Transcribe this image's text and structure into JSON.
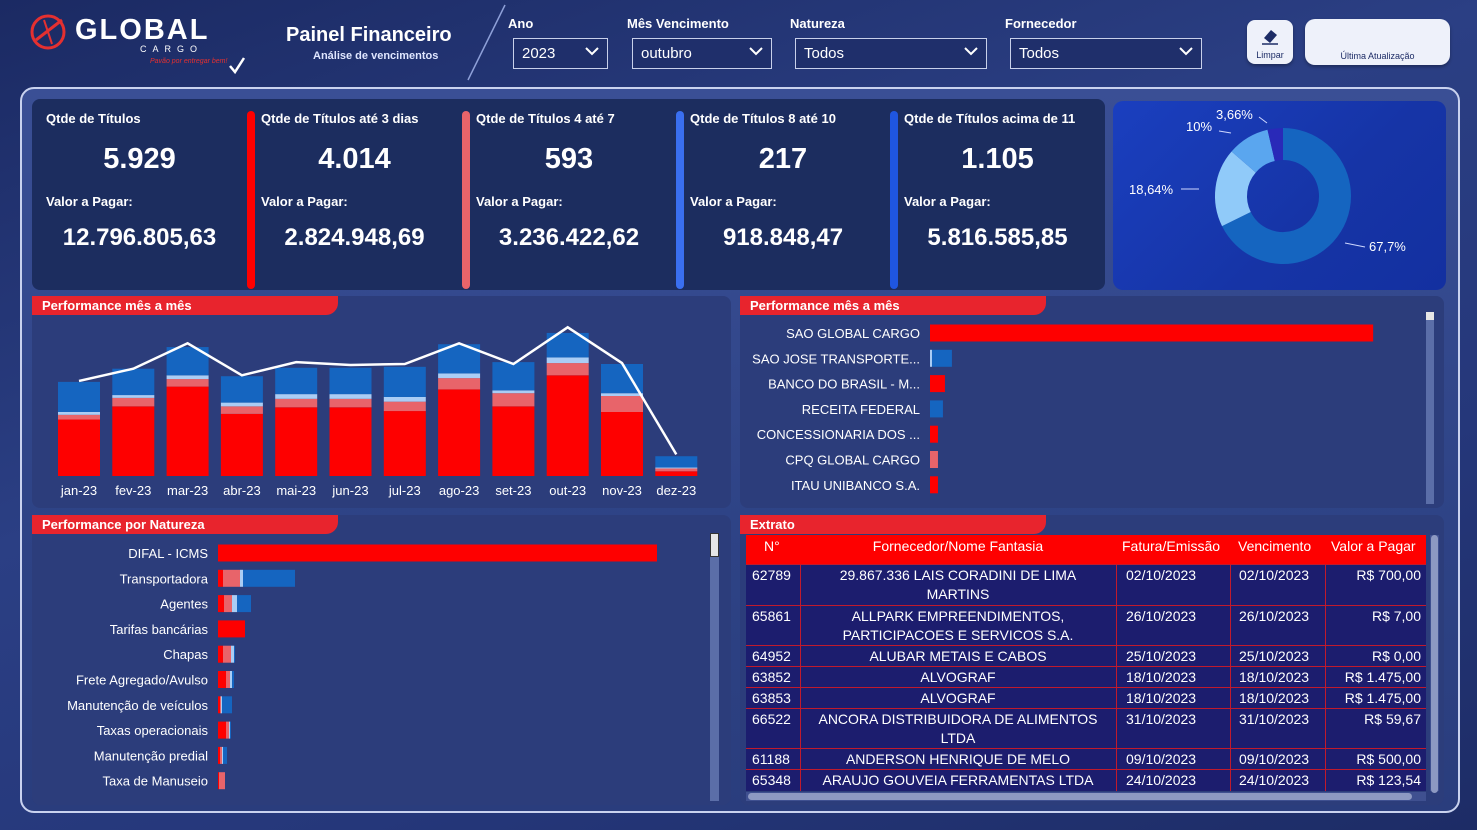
{
  "header": {
    "brand": "GLOBAL",
    "brand_sub": "CARGO",
    "slogan": "Pavão por entregar bem!",
    "title": "Painel Financeiro",
    "subtitle": "Análise de vencimentos"
  },
  "filters": {
    "ano": {
      "label": "Ano",
      "value": "2023"
    },
    "mes": {
      "label": "Mês Vencimento",
      "value": "outubro"
    },
    "natureza": {
      "label": "Natureza",
      "value": "Todos"
    },
    "fornecedor": {
      "label": "Fornecedor",
      "value": "Todos"
    }
  },
  "buttons": {
    "limpar": "Limpar",
    "update": "Última Atualização"
  },
  "kpis": [
    {
      "title": "Qtde de Títulos",
      "count": "5.929",
      "value_label": "Valor a Pagar:",
      "value": "12.796.805,63",
      "accent": ""
    },
    {
      "title": "Qtde de Títulos até 3 dias",
      "count": "4.014",
      "value_label": "Valor a Pagar:",
      "value": "2.824.948,69",
      "accent": "#fe0000"
    },
    {
      "title": "Qtde de Títulos 4 até 7",
      "count": "593",
      "value_label": "Valor a Pagar:",
      "value": "3.236.422,62",
      "accent": "#e8646a"
    },
    {
      "title": "Qtde de Títulos 8 até 10",
      "count": "217",
      "value_label": "Valor a Pagar:",
      "value": "918.848,47",
      "accent": "#3a6ff0"
    },
    {
      "title": "Qtde de Títulos acima de 11",
      "count": "1.105",
      "value_label": "Valor a Pagar:",
      "value": "5.816.585,85",
      "accent": "#1f56e0"
    }
  ],
  "donut": {
    "chart_data": {
      "type": "pie",
      "slices": [
        {
          "label": "67,7%",
          "value": 67.7,
          "color": "#1565c0"
        },
        {
          "label": "18,64%",
          "value": 18.64,
          "color": "#90caf9"
        },
        {
          "label": "10%",
          "value": 10,
          "color": "#5aa6ef"
        },
        {
          "label": "3,66%",
          "value": 3.66,
          "color": "#2929b8"
        }
      ]
    }
  },
  "monthly": {
    "title": "Performance mês a mês",
    "chart_data": {
      "type": "bar",
      "stacked": true,
      "categories": [
        "jan-23",
        "fev-23",
        "mar-23",
        "abr-23",
        "mai-23",
        "jun-23",
        "jul-23",
        "ago-23",
        "set-23",
        "out-23",
        "nov-23",
        "dez-23"
      ],
      "series": [
        {
          "name": "",
          "color": "#fe0000",
          "values": [
            60,
            74,
            95,
            66,
            73,
            73,
            69,
            92,
            74,
            107,
            68,
            5
          ]
        },
        {
          "name": "",
          "color": "#e8646a",
          "values": [
            5,
            9,
            8,
            8,
            9,
            9,
            10,
            12,
            14,
            13,
            17,
            3
          ]
        },
        {
          "name": "",
          "color": "#aacdf5",
          "values": [
            3,
            3,
            4,
            4,
            5,
            5,
            5,
            5,
            3,
            6,
            3,
            1
          ]
        },
        {
          "name": "",
          "color": "#1565c0",
          "values": [
            32,
            28,
            30,
            28,
            28,
            28,
            32,
            31,
            30,
            26,
            31,
            12
          ]
        }
      ],
      "line": [
        101,
        114,
        141,
        107,
        121,
        118,
        119,
        141,
        119,
        158,
        120,
        23
      ],
      "ylim": [
        0,
        170
      ]
    }
  },
  "suppliers": {
    "title": "Performance mês a mês",
    "chart_data": {
      "type": "bar",
      "orientation": "horizontal",
      "categories": [
        "SAO GLOBAL CARGO",
        "SAO JOSE TRANSPORTE...",
        "BANCO DO BRASIL - M...",
        "RECEITA FEDERAL",
        "CONCESSIONARIA DOS ...",
        "CPQ GLOBAL CARGO",
        "ITAU UNIBANCO S.A."
      ],
      "series": [
        {
          "name": "",
          "color": "#fe0000",
          "values": [
            445,
            0,
            15,
            0,
            8,
            0,
            8
          ]
        },
        {
          "name": "",
          "color": "#e8646a",
          "values": [
            0,
            0,
            0,
            0,
            0,
            8,
            0
          ]
        },
        {
          "name": "",
          "color": "#aacdf5",
          "values": [
            0,
            2,
            0,
            0,
            0,
            0,
            0
          ]
        },
        {
          "name": "",
          "color": "#1565c0",
          "values": [
            0,
            20,
            0,
            13,
            0,
            0,
            0
          ]
        }
      ],
      "xlim": [
        0,
        480
      ]
    }
  },
  "natureza": {
    "title": "Performance por Natureza",
    "chart_data": {
      "type": "bar",
      "orientation": "horizontal",
      "categories": [
        "DIFAL - ICMS",
        "Transportadora",
        "Agentes",
        "Tarifas bancárias",
        "Chapas",
        "Frete Agregado/Avulso",
        "Manutenção de veículos",
        "Taxas operacionais",
        "Manutenção predial",
        "Taxa de Manuseio"
      ],
      "series": [
        {
          "name": "",
          "color": "#fe0000",
          "values": [
            439,
            5,
            6,
            27,
            5,
            8,
            2,
            8,
            2,
            1
          ]
        },
        {
          "name": "",
          "color": "#e8646a",
          "values": [
            0,
            17,
            8,
            0,
            8,
            4,
            1,
            3,
            2,
            6
          ]
        },
        {
          "name": "",
          "color": "#aacdf5",
          "values": [
            0,
            3,
            5,
            0,
            3,
            2,
            1,
            1,
            1,
            0
          ]
        },
        {
          "name": "",
          "color": "#1565c0",
          "values": [
            0,
            52,
            14,
            0,
            1,
            2,
            10,
            1,
            4,
            0
          ]
        }
      ],
      "xlim": [
        0,
        480
      ]
    }
  },
  "extrato": {
    "title": "Extrato",
    "columns": [
      "N°",
      "Fornecedor/Nome Fantasia",
      "Fatura/Emissão",
      "Vencimento",
      "Valor a Pagar"
    ],
    "rows": [
      {
        "n": "62789",
        "fornecedor": "29.867.336 LAIS CORADINI DE LIMA",
        "fornecedor2": "MARTINS",
        "fatura": "02/10/2023",
        "venc": "02/10/2023",
        "valor": "R$ 700,00"
      },
      {
        "n": "65861",
        "fornecedor": "ALLPARK EMPREENDIMENTOS,",
        "fornecedor2": "PARTICIPACOES E SERVICOS S.A.",
        "fatura": "26/10/2023",
        "venc": "26/10/2023",
        "valor": "R$ 7,00"
      },
      {
        "n": "64952",
        "fornecedor": "ALUBAR METAIS E CABOS",
        "fornecedor2": "",
        "fatura": "25/10/2023",
        "venc": "25/10/2023",
        "valor": "R$ 0,00"
      },
      {
        "n": "63852",
        "fornecedor": "ALVOGRAF",
        "fornecedor2": "",
        "fatura": "18/10/2023",
        "venc": "18/10/2023",
        "valor": "R$ 1.475,00"
      },
      {
        "n": "63853",
        "fornecedor": "ALVOGRAF",
        "fornecedor2": "",
        "fatura": "18/10/2023",
        "venc": "18/10/2023",
        "valor": "R$ 1.475,00"
      },
      {
        "n": "66522",
        "fornecedor": "ANCORA DISTRIBUIDORA DE ALIMENTOS",
        "fornecedor2": "LTDA",
        "fatura": "31/10/2023",
        "venc": "31/10/2023",
        "valor": "R$ 59,67"
      },
      {
        "n": "61188",
        "fornecedor": "ANDERSON HENRIQUE DE MELO",
        "fornecedor2": "",
        "fatura": "09/10/2023",
        "venc": "09/10/2023",
        "valor": "R$ 500,00"
      },
      {
        "n": "65348",
        "fornecedor": "ARAUJO GOUVEIA FERRAMENTAS LTDA",
        "fornecedor2": "",
        "fatura": "24/10/2023",
        "venc": "24/10/2023",
        "valor": "R$ 123,54"
      }
    ]
  }
}
